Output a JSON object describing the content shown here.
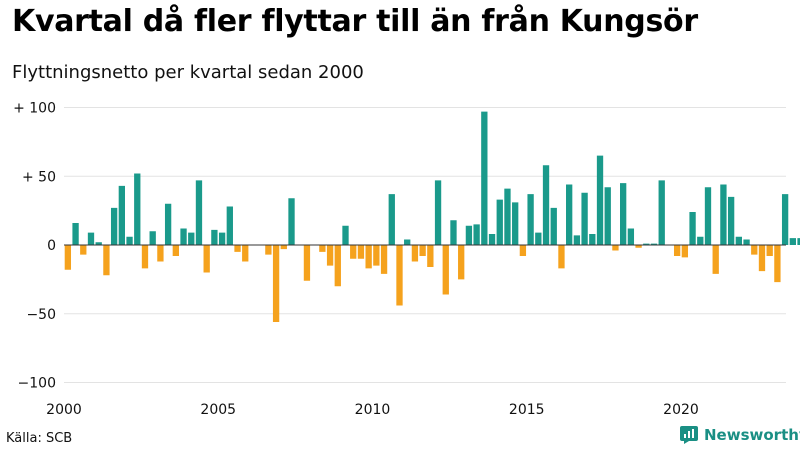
{
  "header": {
    "title": "Kvartal då fler flyttar till än från Kungsör",
    "subtitle": "Flyttningsnetto per kvartal sedan 2000"
  },
  "footer": {
    "source": "Källa: SCB",
    "brand": "Newsworthy"
  },
  "colors": {
    "positive": "#1a9a8b",
    "negative": "#f5a21d",
    "brand": "#1a8f84",
    "grid": "#e3e3e3"
  },
  "chart_data": {
    "type": "bar",
    "title": "Kvartal då fler flyttar till än från Kungsör",
    "subtitle": "Flyttningsnetto per kvartal sedan 2000",
    "xlabel": "",
    "ylabel": "",
    "ylim": [
      -100,
      100
    ],
    "y_ticks": [
      100,
      50,
      0,
      -50,
      -100
    ],
    "y_tick_labels": [
      "+ 100",
      "+  50",
      "0",
      "−50",
      "−100"
    ],
    "x_ticks": [
      2000,
      2005,
      2010,
      2015,
      2020
    ],
    "grid": true,
    "start": "2000Q1",
    "values": [
      -18,
      16,
      -7,
      9,
      2,
      -22,
      27,
      43,
      6,
      52,
      -17,
      10,
      -12,
      30,
      -8,
      12,
      9,
      47,
      -20,
      11,
      9,
      28,
      -5,
      -12,
      0,
      0,
      -7,
      -56,
      -3,
      34,
      0,
      -26,
      0,
      -5,
      -15,
      -30,
      14,
      -10,
      -10,
      -17,
      -15,
      -21,
      37,
      -44,
      4,
      -12,
      -8,
      -16,
      47,
      -36,
      18,
      -25,
      14,
      15,
      97,
      8,
      33,
      41,
      31,
      -8,
      37,
      9,
      58,
      27,
      -17,
      44,
      7,
      38,
      8,
      65,
      42,
      -4,
      45,
      12,
      -2,
      1,
      1,
      47,
      0,
      -8,
      -9,
      24,
      6,
      42,
      -21,
      44,
      35,
      6,
      4,
      -7,
      -19,
      -8,
      -27,
      37,
      5,
      5
    ]
  }
}
